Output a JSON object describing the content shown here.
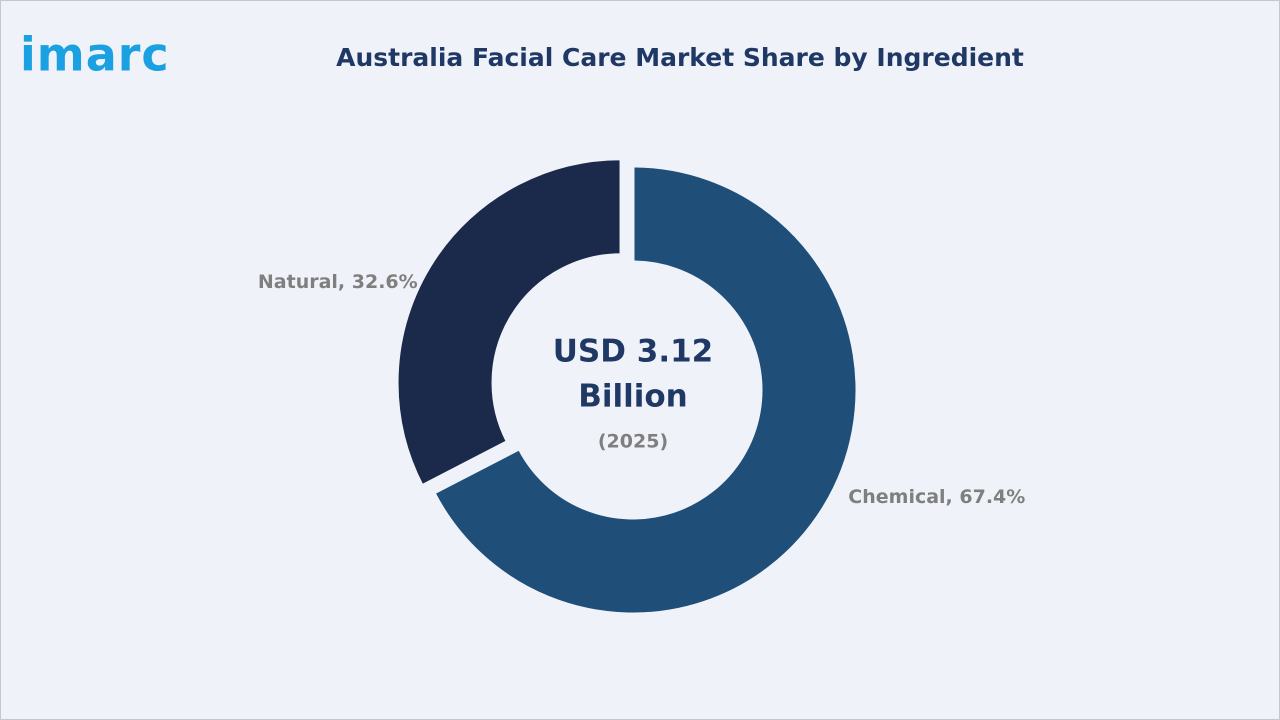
{
  "logo": "imarc",
  "chart_data": {
    "type": "pie",
    "donut": true,
    "title": "Australia Facial Care Market Share by Ingredient",
    "values": [
      67.4,
      32.6
    ],
    "value_labels": [
      "Chemical, 67.4%",
      "Natural, 32.6%"
    ],
    "colors": [
      "#1f4e79",
      "#1b2a4a"
    ],
    "center_label": [
      "USD 3.12",
      "Billion"
    ],
    "center_sublabel": "(2025)"
  }
}
